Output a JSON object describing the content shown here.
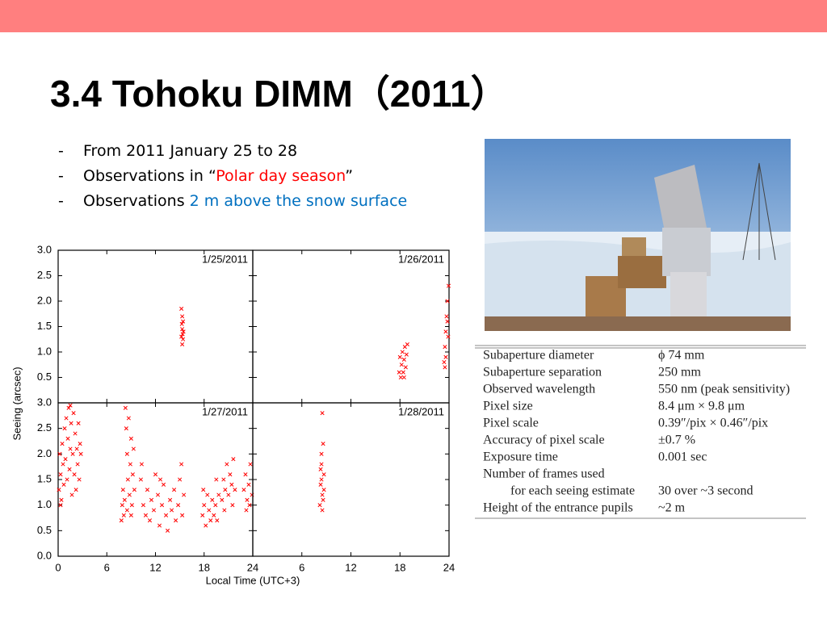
{
  "header": {
    "title": "3.4 Tohoku DIMM（2011）"
  },
  "bullets": [
    [
      {
        "text": "From 2011 January 25 to 28"
      }
    ],
    [
      {
        "text": "Observations in “"
      },
      {
        "text": "Polar day season",
        "color": "#ff0000"
      },
      {
        "text": "”"
      }
    ],
    [
      {
        "text": "Observations "
      },
      {
        "text": "2 m above the snow surface",
        "color": "#0070c0"
      }
    ]
  ],
  "chart_data": {
    "type": "scatter",
    "ylabel": "Seeing (arcsec)",
    "xlabel": "Local Time (UTC+3)",
    "color": "#ff0000",
    "xlim": [
      0,
      24
    ],
    "xticks": [
      0,
      6,
      12,
      18,
      24
    ],
    "ylim": [
      0,
      3
    ],
    "yticks": [
      {
        "value": 0,
        "label": "0.0"
      },
      {
        "value": 0.5,
        "label": "0.5"
      },
      {
        "value": 1,
        "label": "1.0"
      },
      {
        "value": 1.5,
        "label": "1.5"
      },
      {
        "value": 2,
        "label": "2.0"
      },
      {
        "value": 2.5,
        "label": "2.5"
      },
      {
        "value": 3,
        "label": "3.0"
      }
    ],
    "panels": [
      {
        "label": "1/25/2011",
        "x": [
          15.2,
          15.3,
          15.25,
          15.4,
          15.3,
          15.35,
          15.4,
          15.3,
          15.45,
          15.2
        ],
        "y": [
          1.85,
          1.7,
          1.55,
          1.6,
          1.45,
          1.35,
          1.25,
          1.15,
          1.4,
          1.3
        ]
      },
      {
        "label": "1/26/2011",
        "x": [
          17.9,
          18.0,
          18.1,
          18.2,
          18.3,
          18.4,
          18.5,
          18.6,
          18.7,
          18.8,
          18.9,
          18.5,
          23.4,
          23.5,
          23.6,
          23.7,
          23.8,
          23.9,
          23.95,
          23.6,
          23.8,
          23.5
        ],
        "y": [
          0.6,
          0.9,
          0.5,
          0.75,
          1.0,
          0.6,
          0.85,
          1.1,
          0.7,
          0.95,
          1.15,
          0.5,
          0.8,
          1.1,
          1.4,
          1.7,
          2.0,
          1.3,
          2.3,
          0.9,
          1.6,
          0.7
        ]
      },
      {
        "label": "1/27/2011",
        "x": [
          0.1,
          0.2,
          0.3,
          0.4,
          0.5,
          0.6,
          0.7,
          0.8,
          0.9,
          1.0,
          1.1,
          1.2,
          1.3,
          1.4,
          1.5,
          1.6,
          1.7,
          1.8,
          1.9,
          2.0,
          2.1,
          2.2,
          2.3,
          2.4,
          2.5,
          2.6,
          2.7,
          0.3,
          1.5,
          2.8,
          7.8,
          7.9,
          8.0,
          8.1,
          8.2,
          8.3,
          8.4,
          8.5,
          8.6,
          8.7,
          8.8,
          8.9,
          9.0,
          9.1,
          9.2,
          9.3,
          9.4,
          8.5,
          9.0,
          10.2,
          10.5,
          10.8,
          11.0,
          11.3,
          11.5,
          11.8,
          12.0,
          12.3,
          12.5,
          12.8,
          13.0,
          13.3,
          13.5,
          13.8,
          14.0,
          14.3,
          14.5,
          14.8,
          15.0,
          15.3,
          15.5,
          15.2,
          10.3,
          12.6,
          17.8,
          18.0,
          18.2,
          18.4,
          18.6,
          18.8,
          19.0,
          19.2,
          19.4,
          19.6,
          19.8,
          19.5,
          17.9,
          20.2,
          20.4,
          20.6,
          20.8,
          21.0,
          21.2,
          21.4,
          21.6,
          21.8,
          20.5,
          21.5,
          22.9,
          23.1,
          23.3,
          23.5,
          23.7,
          23.9,
          23.2,
          23.6
        ],
        "y": [
          1.3,
          2.0,
          1.6,
          1.1,
          2.2,
          1.8,
          1.4,
          2.5,
          1.9,
          2.7,
          1.5,
          2.3,
          2.9,
          1.7,
          2.1,
          2.6,
          1.2,
          2.0,
          2.8,
          1.6,
          2.4,
          1.3,
          2.1,
          1.8,
          2.6,
          1.5,
          2.2,
          1.0,
          2.95,
          2.0,
          0.7,
          1.0,
          1.3,
          0.8,
          1.1,
          2.9,
          2.5,
          2.0,
          1.5,
          2.7,
          1.2,
          1.8,
          2.3,
          1.0,
          1.6,
          2.1,
          1.3,
          0.9,
          0.8,
          1.5,
          1.0,
          0.8,
          1.3,
          0.7,
          1.1,
          0.9,
          1.6,
          1.2,
          0.6,
          1.0,
          1.4,
          0.8,
          0.5,
          1.1,
          0.9,
          1.3,
          0.7,
          1.0,
          1.5,
          0.8,
          1.2,
          1.8,
          1.8,
          1.5,
          0.8,
          1.0,
          0.6,
          1.2,
          0.9,
          0.7,
          1.1,
          0.8,
          1.0,
          0.7,
          1.2,
          1.5,
          1.3,
          1.1,
          1.5,
          1.3,
          1.8,
          1.2,
          1.6,
          1.4,
          1.9,
          1.3,
          0.9,
          1.0,
          1.3,
          1.6,
          1.1,
          1.4,
          1.8,
          1.2,
          0.9,
          1.0
        ]
      },
      {
        "label": "1/28/2011",
        "x": [
          8.2,
          8.3,
          8.4,
          8.5,
          8.6,
          8.7,
          8.5,
          8.4,
          8.6,
          8.3,
          8.7,
          8.5,
          8.4
        ],
        "y": [
          1.0,
          1.4,
          1.8,
          1.2,
          2.2,
          1.6,
          0.9,
          2.0,
          1.1,
          1.7,
          1.3,
          2.8,
          1.5
        ]
      }
    ]
  },
  "table": {
    "rows": [
      {
        "label": "Subaperture diameter",
        "value": "ϕ 74 mm"
      },
      {
        "label": "Subaperture separation",
        "value": "250 mm"
      },
      {
        "label": "Observed wavelength",
        "value": "550 nm (peak sensitivity)"
      },
      {
        "label": "Pixel size",
        "value": "8.4 μm × 9.8 μm"
      },
      {
        "label": "Pixel scale",
        "value": "0.39″/pix × 0.46″/pix"
      },
      {
        "label": "Accuracy of pixel scale",
        "value": "±0.7 %"
      },
      {
        "label": "Exposure time",
        "value": "0.001 sec"
      },
      {
        "label": "Number of frames used",
        "sublabel": "for each seeing estimate",
        "value": "30 over ~3 second"
      },
      {
        "label": "Height of the entrance pupils",
        "value": "~2 m"
      }
    ]
  }
}
